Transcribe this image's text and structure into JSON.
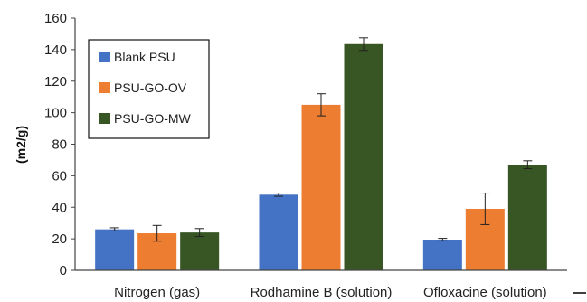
{
  "chart_data": {
    "type": "bar",
    "title": "",
    "xlabel": "",
    "ylabel": "(m2/g)",
    "ylim": [
      0,
      160
    ],
    "yticks": [
      0,
      20,
      40,
      60,
      80,
      100,
      120,
      140,
      160
    ],
    "grid": false,
    "legend_position": "top-left",
    "categories": [
      "Nitrogen (gas)",
      "Rodhamine B (solution)",
      "Ofloxacine (solution)"
    ],
    "series": [
      {
        "name": "Blank PSU",
        "color": "#4472C4",
        "values": [
          26,
          48,
          19.5
        ],
        "errors": [
          1,
          1,
          0.8
        ]
      },
      {
        "name": "PSU-GO-OV",
        "color": "#ED7D31",
        "values": [
          23.5,
          105,
          39
        ],
        "errors": [
          5,
          7,
          10
        ]
      },
      {
        "name": "PSU-GO-MW",
        "color": "#375623",
        "values": [
          24,
          143.5,
          67
        ],
        "errors": [
          2.5,
          4,
          2.5
        ]
      }
    ]
  }
}
